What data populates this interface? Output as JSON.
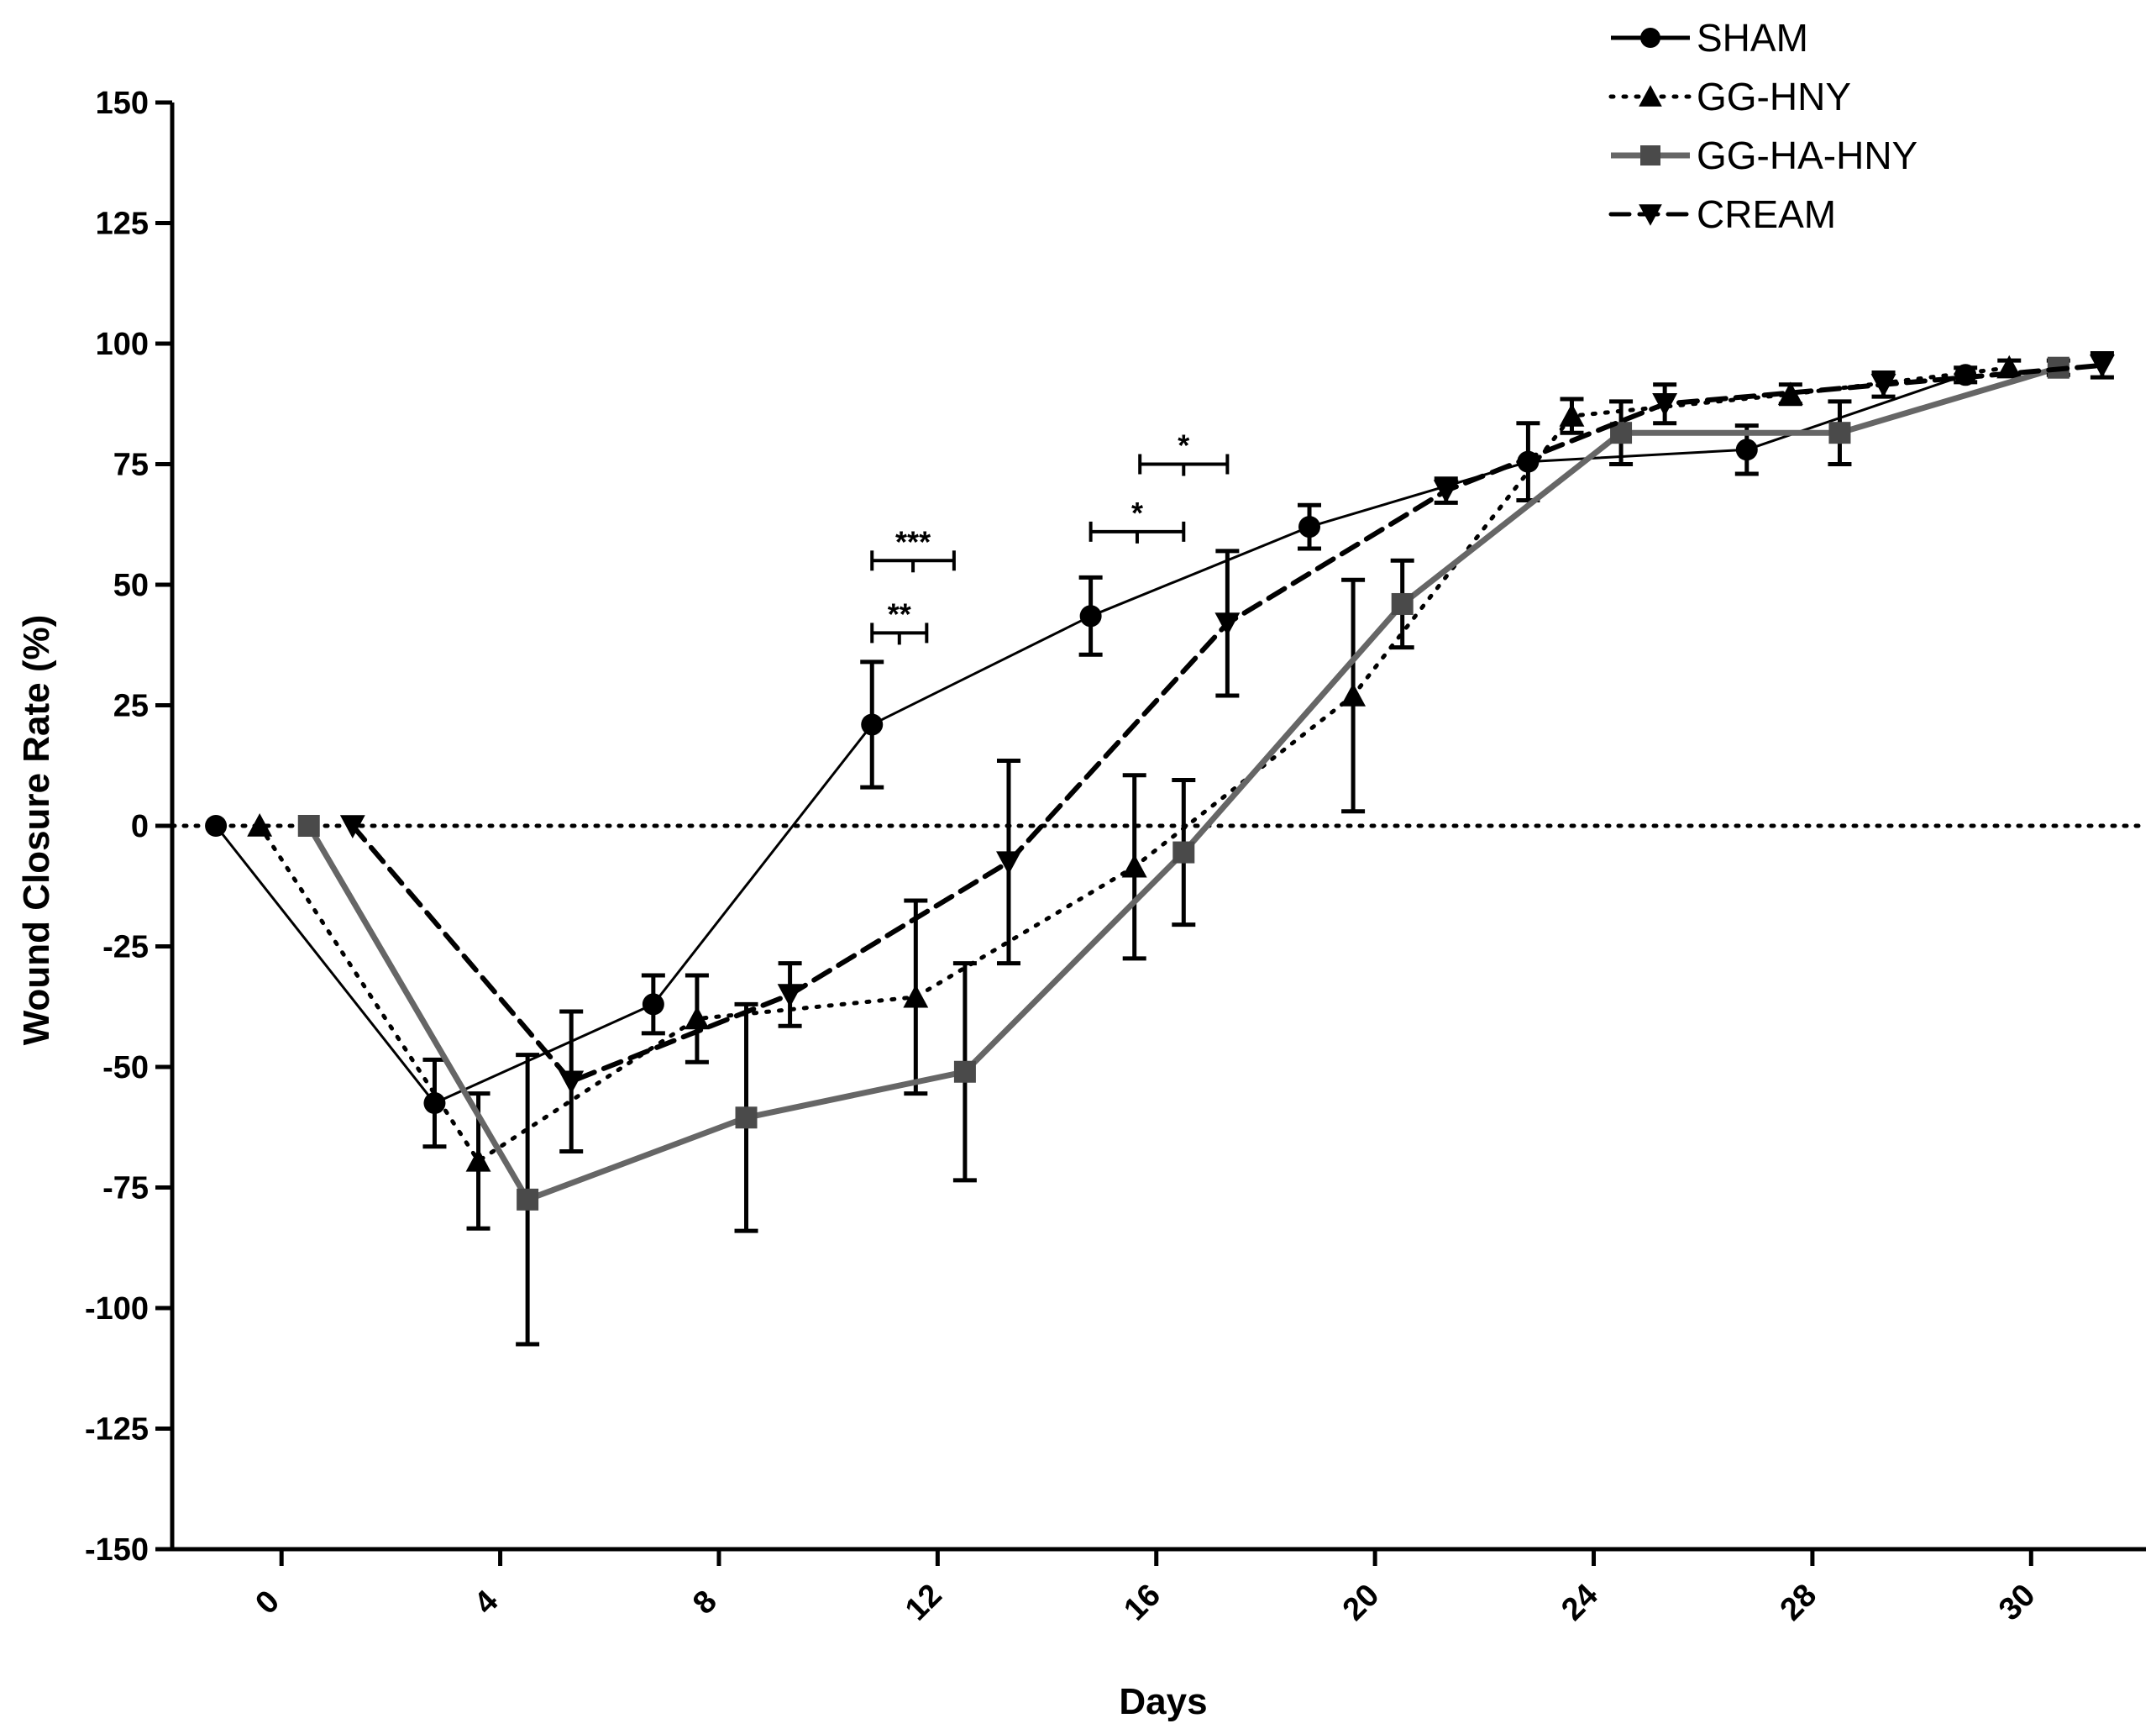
{
  "chart_data": {
    "type": "line",
    "title": "",
    "xlabel": "Days",
    "ylabel": "Wound Closure Rate (%)",
    "ylim": [
      -150,
      150
    ],
    "y_ticks": [
      "150",
      "125",
      "100",
      "75",
      "50",
      "25",
      "0",
      "-25",
      "-50",
      "-75",
      "-100",
      "-125",
      "-150"
    ],
    "y_tick_values": [
      150,
      125,
      100,
      75,
      50,
      25,
      0,
      -25,
      -50,
      -75,
      -100,
      -125,
      -150
    ],
    "x_ticks": [
      "0",
      "4",
      "8",
      "12",
      "16",
      "20",
      "24",
      "28",
      "30"
    ],
    "x_tick_positions": [
      0,
      4,
      8,
      12,
      16,
      20,
      24,
      28,
      32
    ],
    "xlim": [
      -2,
      34.1
    ],
    "reference_line": 0,
    "legend_position": "top-right",
    "series": [
      {
        "name": "SHAM",
        "marker": "circle",
        "line_style": "solid",
        "line_color": "#000000",
        "x": [
          -1.2,
          2.8,
          6.8,
          10.8,
          14.8,
          18.8,
          22.8,
          26.8,
          30.8
        ],
        "y": [
          0,
          -57.5,
          -37,
          21,
          43.5,
          62,
          75.5,
          78,
          93.5
        ],
        "err": [
          0,
          9,
          6,
          13,
          8,
          4.5,
          8,
          5,
          1.5
        ]
      },
      {
        "name": "GG-HNY",
        "marker": "triangle-up",
        "line_style": "dotted",
        "line_color": "#000000",
        "x": [
          -0.4,
          3.6,
          7.6,
          11.6,
          15.6,
          19.6,
          23.6,
          27.6,
          31.6
        ],
        "y": [
          0,
          -69.5,
          -40,
          -35.5,
          -8.5,
          27,
          85,
          89.5,
          95
        ],
        "err": [
          0,
          14,
          9,
          20,
          19,
          24,
          3.5,
          2,
          1.5
        ]
      },
      {
        "name": "GG-HA-HNY",
        "marker": "square",
        "line_style": "solid",
        "line_color": "#666666",
        "x": [
          0.5,
          4.5,
          8.5,
          12.5,
          16.5,
          20.5,
          24.5,
          28.5,
          32.5
        ],
        "y": [
          0,
          -77.5,
          -60.5,
          -51,
          -5.5,
          46,
          81.5,
          81.5,
          95
        ],
        "err": [
          0,
          30,
          23.5,
          22.5,
          15,
          9,
          6.5,
          6.5,
          1.5
        ]
      },
      {
        "name": "CREAM",
        "marker": "triangle-down",
        "line_style": "dashed",
        "line_color": "#000000",
        "x": [
          1.3,
          5.3,
          9.3,
          13.3,
          17.3,
          21.3,
          25.3,
          29.3,
          33.3
        ],
        "y": [
          0,
          -53,
          -35,
          -7.5,
          42,
          69.5,
          87.5,
          91.5,
          95.5
        ],
        "err": [
          0,
          14.5,
          6.5,
          21,
          15,
          2.5,
          4,
          2.5,
          2.5
        ]
      }
    ],
    "significance": [
      {
        "label": "***",
        "x1": 10.8,
        "x2": 12.3,
        "y": 55
      },
      {
        "label": "**",
        "x1": 10.8,
        "x2": 11.8,
        "y": 40
      },
      {
        "label": "*",
        "x1": 14.8,
        "x2": 16.5,
        "y": 61
      },
      {
        "label": "*",
        "x1": 15.7,
        "x2": 17.3,
        "y": 75
      }
    ]
  }
}
